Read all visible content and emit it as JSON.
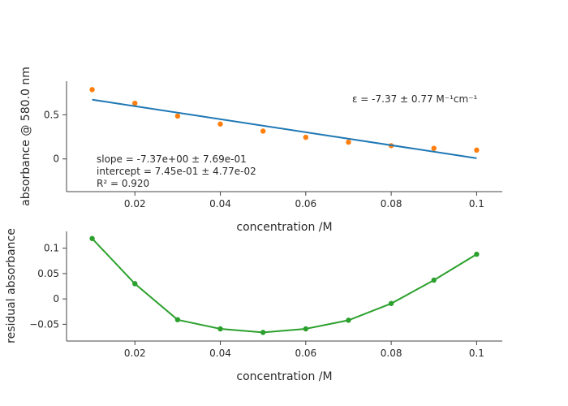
{
  "chart_data": [
    {
      "type": "scatter",
      "xlabel": "concentration /M",
      "ylabel": "absorbance @ 580.0 nm",
      "xlim": [
        0.004,
        0.106
      ],
      "ylim": [
        -0.37,
        0.88
      ],
      "xticks": [
        "0.02",
        "0.04",
        "0.06",
        "0.08",
        "0.1"
      ],
      "xtick_values": [
        0.02,
        0.04,
        0.06,
        0.08,
        0.1
      ],
      "yticks": [
        "0",
        "0.5"
      ],
      "ytick_values": [
        0,
        0.5
      ],
      "grid": false,
      "series": [
        {
          "kind": "points",
          "color": "#ff7f0e",
          "x": [
            0.01,
            0.02,
            0.03,
            0.04,
            0.05,
            0.06,
            0.07,
            0.08,
            0.09,
            0.1
          ],
          "y": [
            0.785,
            0.63,
            0.485,
            0.395,
            0.315,
            0.245,
            0.19,
            0.15,
            0.12,
            0.1
          ]
        },
        {
          "kind": "fit-line",
          "color": "#1f77b4",
          "x": [
            0.01,
            0.1
          ],
          "y": [
            0.671,
            0.008
          ]
        }
      ],
      "annotations": {
        "epsilon": "ε = -7.37 ± 0.77 M⁻¹cm⁻¹",
        "slope": "slope = -7.37e+00 ± 7.69e-01",
        "intercept": "intercept = 7.45e-01 ± 4.77e-02",
        "r2": "R² = 0.920"
      }
    },
    {
      "type": "line",
      "xlabel": "concentration /M",
      "ylabel": "residual absorbance",
      "xlim": [
        0.004,
        0.106
      ],
      "ylim": [
        -0.083,
        0.133
      ],
      "xticks": [
        "0.02",
        "0.04",
        "0.06",
        "0.08",
        "0.1"
      ],
      "xtick_values": [
        0.02,
        0.04,
        0.06,
        0.08,
        0.1
      ],
      "yticks": [
        "−0.05",
        "0",
        "0.05",
        "0.1"
      ],
      "ytick_values": [
        -0.05,
        0,
        0.05,
        0.1
      ],
      "grid": false,
      "series": [
        {
          "kind": "line-markers",
          "color": "#2ca02c",
          "x": [
            0.01,
            0.02,
            0.03,
            0.04,
            0.05,
            0.06,
            0.07,
            0.08,
            0.09,
            0.1
          ],
          "y": [
            0.119,
            0.03,
            -0.041,
            -0.059,
            -0.066,
            -0.059,
            -0.042,
            -0.009,
            0.037,
            0.088
          ]
        }
      ]
    }
  ]
}
